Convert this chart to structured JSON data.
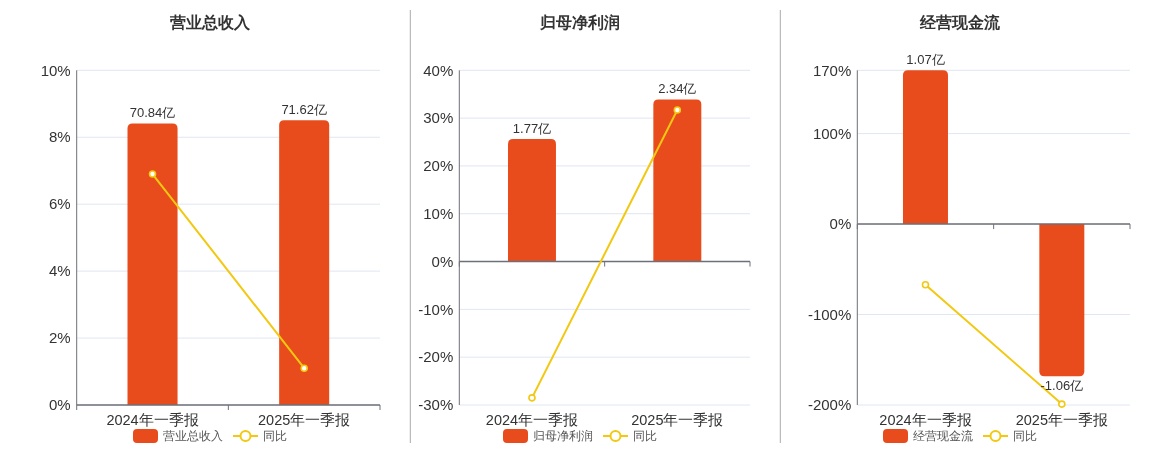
{
  "chart_data": [
    {
      "type": "bar",
      "title": "营业总收入",
      "categories": [
        "2024年一季报",
        "2025年一季报"
      ],
      "series": [
        {
          "name": "营业总收入",
          "axis": "y2",
          "color": "#e84c1d",
          "values": [
            70.84,
            71.62
          ],
          "value_labels": [
            "70.84亿",
            "71.62亿"
          ]
        },
        {
          "name": "同比",
          "type": "line",
          "color": "#f2c811",
          "marker": "circle",
          "values": [
            6.9,
            1.1
          ]
        }
      ],
      "ylim": [
        0,
        10
      ],
      "yticks": [
        {
          "value": 0,
          "label": "0%"
        },
        {
          "value": 2,
          "label": "2%"
        },
        {
          "value": 4,
          "label": "4%"
        },
        {
          "value": 6,
          "label": "6%"
        },
        {
          "value": 8,
          "label": "8%"
        },
        {
          "value": 10,
          "label": "10%"
        }
      ],
      "y2lim": [
        0,
        84.2
      ],
      "grid": "y",
      "legend": "bottom"
    },
    {
      "type": "bar",
      "title": "归母净利润",
      "categories": [
        "2024年一季报",
        "2025年一季报"
      ],
      "series": [
        {
          "name": "归母净利润",
          "axis": "y2",
          "color": "#e84c1d",
          "values": [
            1.77,
            2.34
          ],
          "value_labels": [
            "1.77亿",
            "2.34亿"
          ]
        },
        {
          "name": "同比",
          "type": "line",
          "color": "#f2c811",
          "marker": "circle",
          "values": [
            -28.5,
            31.7
          ]
        }
      ],
      "ylim": [
        -30,
        40
      ],
      "yticks": [
        {
          "value": -30,
          "label": "-30%"
        },
        {
          "value": -20,
          "label": "-20%"
        },
        {
          "value": -10,
          "label": "-10%"
        },
        {
          "value": 0,
          "label": "0%"
        },
        {
          "value": 10,
          "label": "10%"
        },
        {
          "value": 20,
          "label": "20%"
        },
        {
          "value": 30,
          "label": "30%"
        },
        {
          "value": 40,
          "label": "40%"
        }
      ],
      "y2lim": [
        -2.07,
        2.76
      ],
      "grid": "y",
      "legend": "bottom"
    },
    {
      "type": "bar",
      "title": "经营现金流",
      "categories": [
        "2024年一季报",
        "2025年一季报"
      ],
      "series": [
        {
          "name": "经营现金流",
          "axis": "y2",
          "color": "#e84c1d",
          "values": [
            1.07,
            -1.06
          ],
          "value_labels": [
            "1.07亿",
            "-1.06亿"
          ]
        },
        {
          "name": "同比",
          "type": "line",
          "color": "#f2c811",
          "marker": "circle",
          "values": [
            -67,
            -199
          ]
        }
      ],
      "ylim": [
        -200,
        170
      ],
      "yticks": [
        {
          "value": -200,
          "label": "-200%"
        },
        {
          "value": -100,
          "label": "-100%"
        },
        {
          "value": 0,
          "label": "0%"
        },
        {
          "value": 100,
          "label": "100%"
        },
        {
          "value": 170,
          "label": "170%"
        }
      ],
      "y2lim": [
        -1.26,
        1.07
      ],
      "grid": "y",
      "legend": "bottom"
    }
  ]
}
